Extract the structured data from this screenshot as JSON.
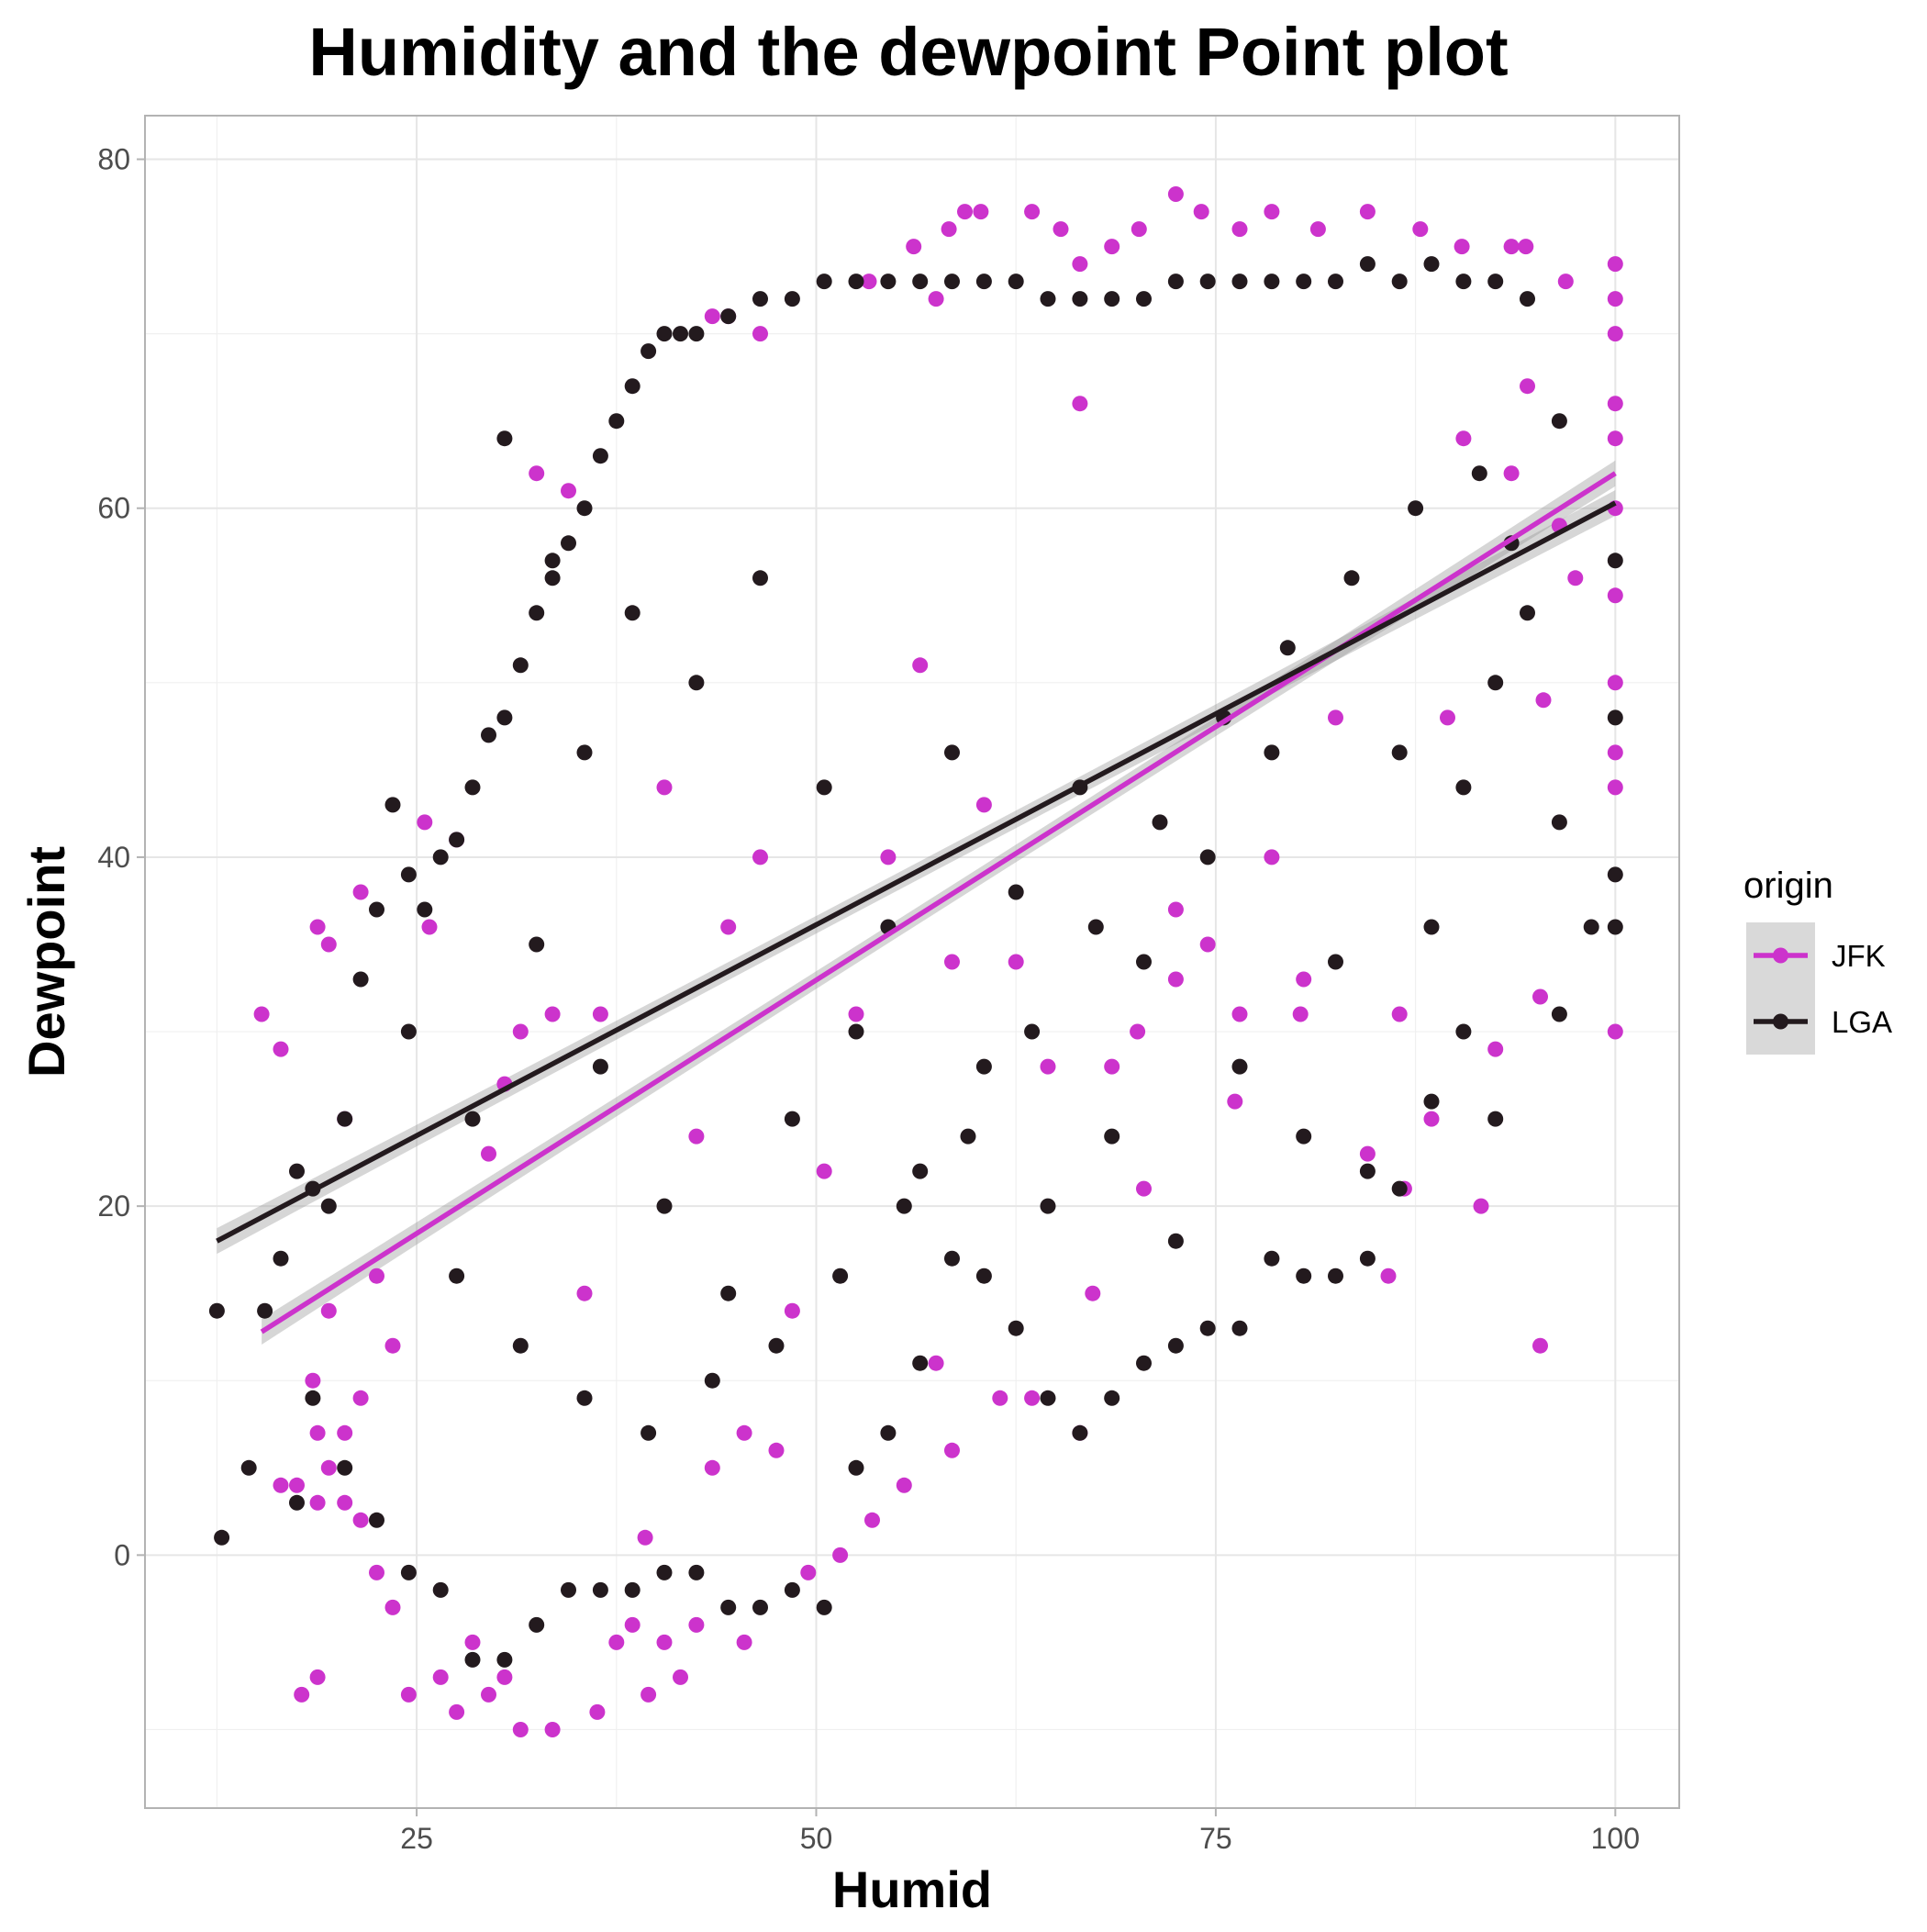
{
  "chart_data": {
    "type": "scatter",
    "title": "Humidity and the dewpoint Point plot",
    "xlabel": "Humid",
    "ylabel": "Dewpoint",
    "xlim": [
      8,
      104
    ],
    "ylim": [
      -14.5,
      82.5
    ],
    "x_ticks": [
      25,
      50,
      75,
      100
    ],
    "y_ticks": [
      0,
      20,
      40,
      60,
      80
    ],
    "x_tick_labels": [
      "25",
      "50",
      "75",
      "100"
    ],
    "y_tick_labels": [
      "0",
      "20",
      "40",
      "60",
      "80"
    ],
    "grid": true,
    "legend": {
      "title": "origin",
      "position": "right"
    },
    "series": [
      {
        "name": "JFK",
        "color": "#CC33CC",
        "trend": {
          "method": "lm",
          "x": [
            15.3,
            100
          ],
          "y": [
            12.8,
            62.0
          ]
        },
        "points": [
          [
            15.3,
            31
          ],
          [
            16.5,
            29
          ],
          [
            16.5,
            4
          ],
          [
            17.5,
            4
          ],
          [
            17.8,
            -8
          ],
          [
            18.8,
            -7
          ],
          [
            18.8,
            36
          ],
          [
            18.8,
            7
          ],
          [
            18.8,
            3
          ],
          [
            19.5,
            35
          ],
          [
            19.5,
            5
          ],
          [
            20.5,
            7
          ],
          [
            20.5,
            3
          ],
          [
            21.5,
            38
          ],
          [
            21.5,
            2
          ],
          [
            22.5,
            -1
          ],
          [
            23.5,
            -3
          ],
          [
            24.5,
            -8
          ],
          [
            25.8,
            36
          ],
          [
            26.5,
            -7
          ],
          [
            27.5,
            -9
          ],
          [
            28.5,
            -5
          ],
          [
            29.5,
            -8
          ],
          [
            30.5,
            -7
          ],
          [
            31.5,
            -10
          ],
          [
            32.5,
            62
          ],
          [
            33.5,
            -10
          ],
          [
            34.5,
            61
          ],
          [
            36.3,
            -9
          ],
          [
            37.5,
            -5
          ],
          [
            38.5,
            -4
          ],
          [
            39.5,
            -8
          ],
          [
            40.5,
            -5
          ],
          [
            41.5,
            -7
          ],
          [
            42.5,
            -4
          ],
          [
            43.5,
            71
          ],
          [
            44.5,
            71
          ],
          [
            45.5,
            -5
          ],
          [
            46.5,
            70
          ],
          [
            53.3,
            73
          ],
          [
            56.1,
            75
          ],
          [
            57.5,
            72
          ],
          [
            58.3,
            76
          ],
          [
            59.3,
            77
          ],
          [
            60.3,
            77
          ],
          [
            63.5,
            77
          ],
          [
            65.3,
            76
          ],
          [
            66.5,
            74
          ],
          [
            68.5,
            75
          ],
          [
            70.2,
            76
          ],
          [
            72.5,
            78
          ],
          [
            74.1,
            77
          ],
          [
            76.5,
            76
          ],
          [
            78.5,
            77
          ],
          [
            81.4,
            76
          ],
          [
            84.5,
            77
          ],
          [
            87.8,
            76
          ],
          [
            90.4,
            75
          ],
          [
            93.5,
            75
          ],
          [
            94.4,
            75
          ],
          [
            96.9,
            73
          ],
          [
            100,
            74
          ],
          [
            100,
            72
          ],
          [
            100,
            70
          ],
          [
            100,
            66
          ],
          [
            100,
            64
          ],
          [
            100,
            60
          ],
          [
            100,
            55
          ],
          [
            100,
            50
          ],
          [
            100,
            46
          ],
          [
            100,
            44
          ],
          [
            100,
            30
          ],
          [
            95.3,
            12
          ],
          [
            95.3,
            32
          ],
          [
            91.6,
            20
          ],
          [
            89.5,
            48
          ],
          [
            85.8,
            16
          ],
          [
            86.8,
            21
          ],
          [
            80.3,
            31
          ],
          [
            76.2,
            26
          ],
          [
            72.5,
            33
          ],
          [
            70.1,
            30
          ],
          [
            67.3,
            15
          ],
          [
            66.5,
            7
          ],
          [
            63.5,
            9
          ],
          [
            61.5,
            9
          ],
          [
            58.5,
            6
          ],
          [
            57.5,
            11
          ],
          [
            55.5,
            4
          ],
          [
            53.5,
            2
          ],
          [
            51.5,
            0
          ],
          [
            49.5,
            -1
          ],
          [
            47.5,
            6
          ],
          [
            45.5,
            7
          ],
          [
            43.5,
            5
          ],
          [
            39.3,
            1
          ],
          [
            35.5,
            15
          ],
          [
            31.5,
            30
          ],
          [
            29.5,
            23
          ],
          [
            27.5,
            41
          ],
          [
            25.5,
            42
          ],
          [
            23.5,
            12
          ],
          [
            22.5,
            16
          ],
          [
            21.5,
            9
          ],
          [
            20.5,
            25
          ],
          [
            19.5,
            14
          ],
          [
            18.5,
            10
          ],
          [
            30.5,
            27
          ],
          [
            33.5,
            31
          ],
          [
            36.5,
            31
          ],
          [
            40.5,
            44
          ],
          [
            42.5,
            24
          ],
          [
            44.5,
            36
          ],
          [
            46.5,
            40
          ],
          [
            48.5,
            14
          ],
          [
            50.5,
            22
          ],
          [
            52.5,
            31
          ],
          [
            54.5,
            40
          ],
          [
            56.5,
            51
          ],
          [
            58.5,
            34
          ],
          [
            60.5,
            43
          ],
          [
            62.5,
            34
          ],
          [
            64.5,
            28
          ],
          [
            66.5,
            66
          ],
          [
            68.5,
            28
          ],
          [
            70.5,
            21
          ],
          [
            72.5,
            37
          ],
          [
            74.5,
            35
          ],
          [
            76.5,
            31
          ],
          [
            78.5,
            40
          ],
          [
            80.5,
            33
          ],
          [
            82.5,
            48
          ],
          [
            84.5,
            23
          ],
          [
            86.5,
            31
          ],
          [
            88.5,
            25
          ],
          [
            90.5,
            64
          ],
          [
            92.5,
            29
          ],
          [
            93.5,
            62
          ],
          [
            94.5,
            67
          ],
          [
            95.5,
            49
          ],
          [
            96.5,
            59
          ],
          [
            97.5,
            56
          ]
        ]
      },
      {
        "name": "LGA",
        "color": "#231A1E",
        "trend": {
          "method": "lm",
          "x": [
            12.5,
            100
          ],
          "y": [
            18.0,
            60.3
          ]
        },
        "points": [
          [
            12.5,
            14
          ],
          [
            12.8,
            1
          ],
          [
            14.5,
            5
          ],
          [
            15.5,
            14
          ],
          [
            16.5,
            17
          ],
          [
            17.5,
            22
          ],
          [
            18.5,
            21
          ],
          [
            19.5,
            20
          ],
          [
            20.5,
            25
          ],
          [
            21.5,
            33
          ],
          [
            22.5,
            37
          ],
          [
            23.5,
            43
          ],
          [
            24.5,
            39
          ],
          [
            25.5,
            37
          ],
          [
            26.5,
            40
          ],
          [
            27.5,
            41
          ],
          [
            28.5,
            44
          ],
          [
            29.5,
            47
          ],
          [
            30.5,
            48
          ],
          [
            31.5,
            51
          ],
          [
            32.5,
            54
          ],
          [
            33.5,
            57
          ],
          [
            34.5,
            58
          ],
          [
            35.5,
            60
          ],
          [
            36.5,
            63
          ],
          [
            37.5,
            65
          ],
          [
            38.5,
            67
          ],
          [
            39.5,
            69
          ],
          [
            40.5,
            70
          ],
          [
            41.5,
            70
          ],
          [
            42.5,
            70
          ],
          [
            44.5,
            71
          ],
          [
            46.5,
            72
          ],
          [
            48.5,
            72
          ],
          [
            50.5,
            73
          ],
          [
            52.5,
            73
          ],
          [
            54.5,
            73
          ],
          [
            56.5,
            73
          ],
          [
            58.5,
            73
          ],
          [
            60.5,
            73
          ],
          [
            62.5,
            73
          ],
          [
            64.5,
            72
          ],
          [
            66.5,
            72
          ],
          [
            68.5,
            72
          ],
          [
            70.5,
            72
          ],
          [
            72.5,
            73
          ],
          [
            74.5,
            73
          ],
          [
            76.5,
            73
          ],
          [
            78.5,
            73
          ],
          [
            80.5,
            73
          ],
          [
            82.5,
            73
          ],
          [
            84.5,
            74
          ],
          [
            86.5,
            73
          ],
          [
            88.5,
            74
          ],
          [
            90.5,
            73
          ],
          [
            92.5,
            73
          ],
          [
            94.5,
            72
          ],
          [
            96.5,
            65
          ],
          [
            100,
            57
          ],
          [
            100,
            48
          ],
          [
            100,
            39
          ],
          [
            100,
            36
          ],
          [
            96.5,
            31
          ],
          [
            92.5,
            25
          ],
          [
            90.5,
            30
          ],
          [
            88.5,
            26
          ],
          [
            86.5,
            21
          ],
          [
            84.5,
            17
          ],
          [
            82.5,
            16
          ],
          [
            80.5,
            16
          ],
          [
            78.5,
            17
          ],
          [
            76.5,
            13
          ],
          [
            74.5,
            13
          ],
          [
            72.5,
            12
          ],
          [
            70.5,
            11
          ],
          [
            68.5,
            9
          ],
          [
            66.5,
            7
          ],
          [
            64.5,
            9
          ],
          [
            62.5,
            13
          ],
          [
            60.5,
            16
          ],
          [
            58.5,
            17
          ],
          [
            56.5,
            11
          ],
          [
            54.5,
            7
          ],
          [
            52.5,
            5
          ],
          [
            50.5,
            -3
          ],
          [
            48.5,
            -2
          ],
          [
            46.5,
            -3
          ],
          [
            44.5,
            -3
          ],
          [
            42.5,
            -1
          ],
          [
            40.5,
            -1
          ],
          [
            38.5,
            -2
          ],
          [
            36.5,
            -2
          ],
          [
            34.5,
            -2
          ],
          [
            32.5,
            -4
          ],
          [
            30.5,
            -6
          ],
          [
            28.5,
            -6
          ],
          [
            26.5,
            -2
          ],
          [
            24.5,
            -1
          ],
          [
            22.5,
            2
          ],
          [
            20.5,
            5
          ],
          [
            18.5,
            9
          ],
          [
            17.5,
            3
          ],
          [
            30.5,
            64
          ],
          [
            33.5,
            56
          ],
          [
            35.5,
            46
          ],
          [
            38.5,
            54
          ],
          [
            42.5,
            50
          ],
          [
            46.5,
            56
          ],
          [
            50.5,
            44
          ],
          [
            54.5,
            36
          ],
          [
            58.5,
            46
          ],
          [
            62.5,
            38
          ],
          [
            66.5,
            44
          ],
          [
            70.5,
            34
          ],
          [
            74.5,
            40
          ],
          [
            78.5,
            46
          ],
          [
            82.5,
            34
          ],
          [
            86.5,
            46
          ],
          [
            88.5,
            36
          ],
          [
            90.5,
            44
          ],
          [
            92.5,
            50
          ],
          [
            93.5,
            58
          ],
          [
            94.5,
            54
          ],
          [
            96.5,
            42
          ],
          [
            98.5,
            36
          ],
          [
            24.5,
            30
          ],
          [
            28.5,
            25
          ],
          [
            32.5,
            35
          ],
          [
            36.5,
            28
          ],
          [
            40.5,
            20
          ],
          [
            44.5,
            15
          ],
          [
            48.5,
            25
          ],
          [
            52.5,
            30
          ],
          [
            56.5,
            22
          ],
          [
            60.5,
            28
          ],
          [
            64.5,
            20
          ],
          [
            68.5,
            24
          ],
          [
            72.5,
            18
          ],
          [
            76.5,
            28
          ],
          [
            80.5,
            24
          ],
          [
            84.5,
            22
          ],
          [
            27.5,
            16
          ],
          [
            31.5,
            12
          ],
          [
            35.5,
            9
          ],
          [
            39.5,
            7
          ],
          [
            43.5,
            10
          ],
          [
            47.5,
            12
          ],
          [
            51.5,
            16
          ],
          [
            55.5,
            20
          ],
          [
            59.5,
            24
          ],
          [
            63.5,
            30
          ],
          [
            67.5,
            36
          ],
          [
            71.5,
            42
          ],
          [
            75.5,
            48
          ],
          [
            79.5,
            52
          ],
          [
            83.5,
            56
          ],
          [
            87.5,
            60
          ],
          [
            91.5,
            62
          ]
        ]
      }
    ]
  }
}
